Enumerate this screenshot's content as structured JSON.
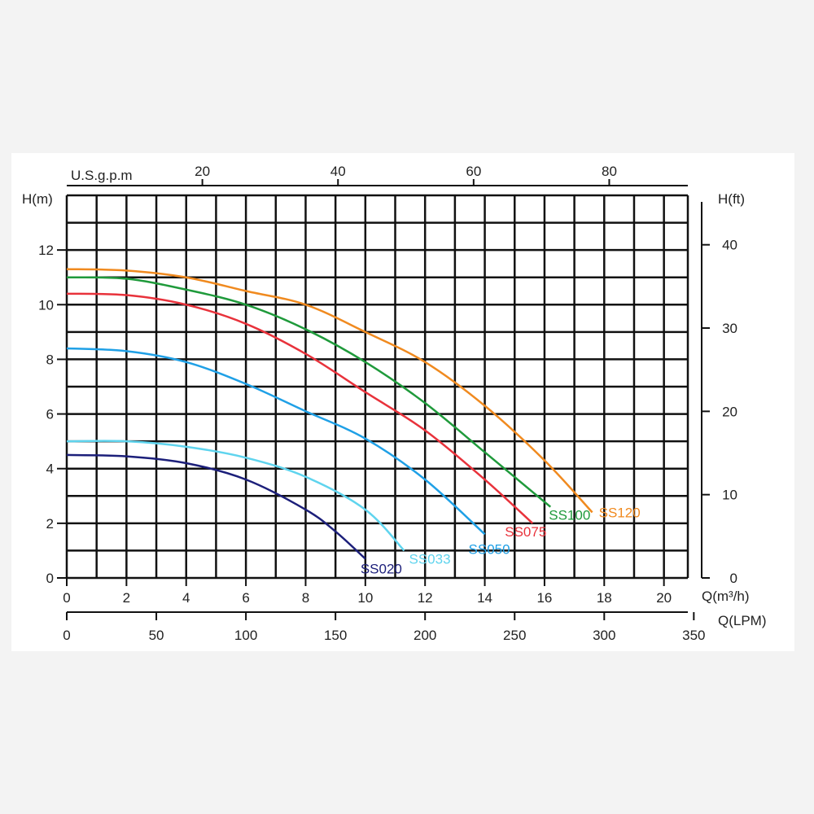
{
  "chart_data": {
    "type": "line",
    "left_axis_label": "H(m)",
    "right_axis_label": "H(ft)",
    "top_axis_label": "U.S.g.p.m",
    "bottom_axis_label": "Q(m³/h)",
    "bottom2_axis_label": "Q(LPM)",
    "x_ticks": [
      "0",
      "2",
      "4",
      "6",
      "8",
      "10",
      "12",
      "14",
      "16",
      "18",
      "20"
    ],
    "y_ticks": [
      "0",
      "2",
      "4",
      "6",
      "8",
      "10",
      "12"
    ],
    "ft_ticks": [
      "0",
      "10",
      "20",
      "30",
      "40"
    ],
    "gpm_ticks": [
      "20",
      "40",
      "60",
      "80"
    ],
    "lpm_ticks": [
      "0",
      "50",
      "100",
      "150",
      "200",
      "250",
      "300",
      "350"
    ],
    "xlim": [
      0,
      20.8
    ],
    "ylim": [
      0,
      14
    ],
    "grid": true,
    "series": [
      {
        "name": "SS020",
        "color": "#1c1f7a",
        "points": [
          [
            0,
            4.5
          ],
          [
            2,
            4.45
          ],
          [
            4,
            4.2
          ],
          [
            6,
            3.6
          ],
          [
            8,
            2.5
          ],
          [
            9,
            1.7
          ],
          [
            10,
            0.7
          ]
        ]
      },
      {
        "name": "SS033",
        "color": "#5fd4ee",
        "points": [
          [
            0,
            5.0
          ],
          [
            2,
            5.0
          ],
          [
            4,
            4.8
          ],
          [
            6,
            4.4
          ],
          [
            8,
            3.7
          ],
          [
            10,
            2.5
          ],
          [
            11.3,
            1.0
          ]
        ]
      },
      {
        "name": "SS050",
        "color": "#1fa0e6",
        "points": [
          [
            0,
            8.4
          ],
          [
            2,
            8.3
          ],
          [
            4,
            7.9
          ],
          [
            6,
            7.1
          ],
          [
            8,
            6.1
          ],
          [
            10,
            5.1
          ],
          [
            12,
            3.6
          ],
          [
            14,
            1.6
          ]
        ]
      },
      {
        "name": "SS075",
        "color": "#e8323b",
        "points": [
          [
            0,
            10.4
          ],
          [
            2,
            10.35
          ],
          [
            4,
            10.0
          ],
          [
            6,
            9.3
          ],
          [
            8,
            8.2
          ],
          [
            10,
            6.8
          ],
          [
            12,
            5.4
          ],
          [
            14,
            3.6
          ],
          [
            15.6,
            2.0
          ]
        ]
      },
      {
        "name": "SS100",
        "color": "#1f9a3b",
        "points": [
          [
            0,
            11.0
          ],
          [
            2,
            10.95
          ],
          [
            4,
            10.55
          ],
          [
            6,
            10.0
          ],
          [
            8,
            9.1
          ],
          [
            10,
            7.9
          ],
          [
            12,
            6.4
          ],
          [
            14,
            4.6
          ],
          [
            16.2,
            2.6
          ]
        ]
      },
      {
        "name": "SS120",
        "color": "#f08a1f",
        "points": [
          [
            0,
            11.3
          ],
          [
            2,
            11.25
          ],
          [
            4,
            11.0
          ],
          [
            6,
            10.5
          ],
          [
            8,
            10.0
          ],
          [
            10,
            9.0
          ],
          [
            12,
            7.9
          ],
          [
            14,
            6.3
          ],
          [
            16,
            4.3
          ],
          [
            17.6,
            2.4
          ]
        ]
      }
    ]
  }
}
